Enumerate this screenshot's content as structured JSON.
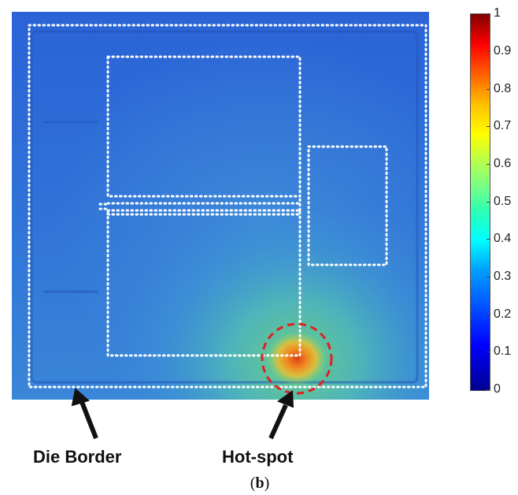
{
  "colorbar": {
    "min": 0,
    "max": 1,
    "ticks": [
      "1",
      "0.9",
      "0.8",
      "0.7",
      "0.6",
      "0.5",
      "0.4",
      "0.3",
      "0.2",
      "0.1",
      "0"
    ]
  },
  "labels": {
    "die_border": "Die Border",
    "hot_spot": "Hot-spot"
  },
  "caption": {
    "open": "(",
    "letter": "b",
    "close": ")"
  },
  "colors": {
    "outline": "#ffffff",
    "hotspot_circle": "#e02020",
    "arrow": "#111111"
  }
}
